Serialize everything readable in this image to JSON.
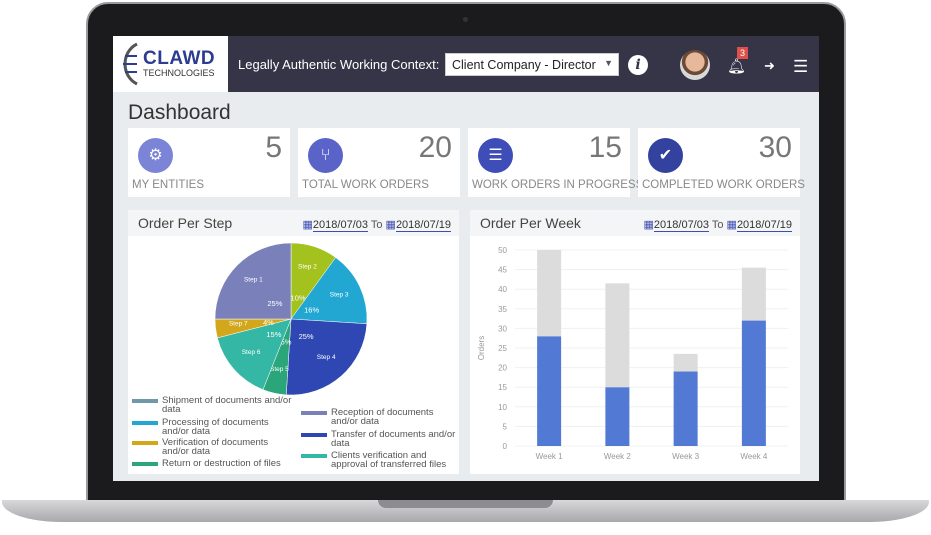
{
  "header": {
    "logo_title": "CLAWD",
    "logo_sub": "TECHNOLOGIES",
    "context_label": "Legally Authentic Working Context:",
    "context_value": "Client Company - Director",
    "notification_count": "3"
  },
  "page_title": "Dashboard",
  "cards": [
    {
      "label": "MY ENTITIES",
      "value": "5",
      "icon": "gears-icon",
      "color": "#7b84d6"
    },
    {
      "label": "TOTAL WORK ORDERS",
      "value": "20",
      "icon": "branch-icon",
      "color": "#5a64c8"
    },
    {
      "label": "WORK ORDERS IN PROGRESS",
      "value": "15",
      "icon": "list-check-icon",
      "color": "#3f4db8"
    },
    {
      "label": "COMPLETED WORK ORDERS",
      "value": "30",
      "icon": "clipboard-check-icon",
      "color": "#34429f"
    }
  ],
  "panels": {
    "date_to_label": "To",
    "step": {
      "title": "Order Per Step",
      "from": "2018/07/03",
      "to": "2018/07/19"
    },
    "week": {
      "title": "Order Per Week",
      "from": "2018/07/03",
      "to": "2018/07/19"
    }
  },
  "chart_data": [
    {
      "type": "pie",
      "slices": [
        {
          "label": "Step 2",
          "value": 10,
          "color": "#a3c21e"
        },
        {
          "label": "Step 3",
          "value": 16,
          "color": "#22a7d3"
        },
        {
          "label": "Step 4",
          "value": 25,
          "color": "#2f47b2"
        },
        {
          "label": "Step 5",
          "value": 5,
          "color": "#2ba57a"
        },
        {
          "label": "Step 6",
          "value": 15,
          "color": "#35b7a6"
        },
        {
          "label": "Step 7",
          "value": 4,
          "color": "#d2a71c"
        },
        {
          "label": "Step 1",
          "value": 25,
          "color": "#7a80ba"
        }
      ],
      "legend": [
        {
          "label": "Shipment of documents and/or data",
          "color": "#6f98a8"
        },
        {
          "label": "Processing of documents and/or data",
          "color": "#22a7d3"
        },
        {
          "label": "Verification of documents and/or data",
          "color": "#d2a71c"
        },
        {
          "label": "Return or destruction of files",
          "color": "#2ba57a"
        },
        {
          "label": "Reception of documents and/or data",
          "color": "#7a80ba"
        },
        {
          "label": "Transfer of documents and/or data",
          "color": "#2f47b2"
        },
        {
          "label": "Clients verification and approval of transferred files",
          "color": "#35b7a6"
        }
      ]
    },
    {
      "type": "bar",
      "stacked": true,
      "categories": [
        "Week 1",
        "Week 2",
        "Week 3",
        "Week 4"
      ],
      "ylabel": "Orders",
      "ylim": [
        0,
        50
      ],
      "yticks": [
        0,
        5,
        10,
        15,
        20,
        25,
        30,
        35,
        40,
        45,
        50
      ],
      "series": [
        {
          "values": [
            28,
            15,
            19,
            32
          ],
          "color": "#5279d4"
        },
        {
          "values": [
            22,
            26.5,
            4.5,
            13.5
          ],
          "color": "#dcdcdc"
        }
      ]
    }
  ]
}
